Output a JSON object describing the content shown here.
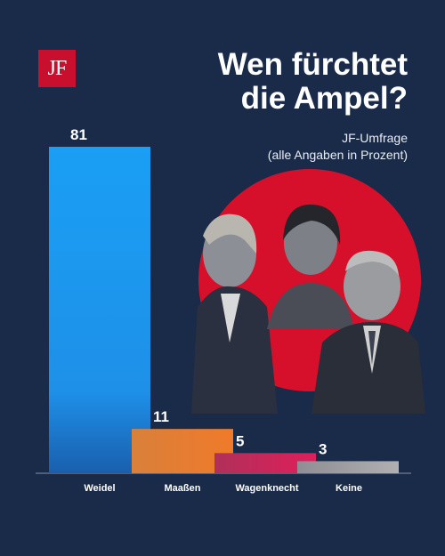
{
  "logo": {
    "text": "JF"
  },
  "header": {
    "title_line1": "Wen fürchtet",
    "title_line2": "die Ampel?",
    "subtitle_line1": "JF-Umfrage",
    "subtitle_line2": "(alle Angaben in Prozent)"
  },
  "colors": {
    "background": "#1a2a49",
    "brand_red": "#c8102e",
    "bar_weidel": "#1e90e8",
    "bar_maassen": "#f07a2a",
    "bar_wagenknecht": "#d81e5b",
    "bar_keine": "#a8a8a8"
  },
  "chart_data": {
    "type": "bar",
    "title": "Wen fürchtet die Ampel?",
    "subtitle": "JF-Umfrage (alle Angaben in Prozent)",
    "categories": [
      "Weidel",
      "Maaßen",
      "Wagenknecht",
      "Keine"
    ],
    "values": [
      81,
      11,
      5,
      3
    ],
    "ylim": [
      0,
      81
    ],
    "grid": false,
    "legend": "none"
  }
}
